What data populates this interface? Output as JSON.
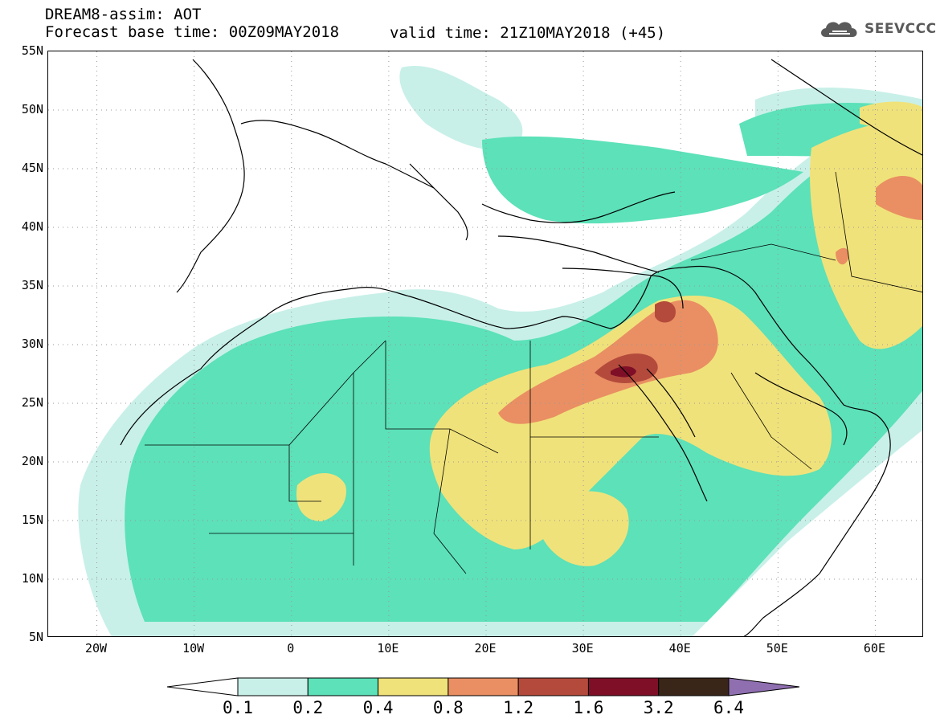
{
  "header": {
    "title_line1": "DREAM8-assim: AOT",
    "title_line2": "Forecast base time: 00Z09MAY2018",
    "valid_time": "valid time: 21Z10MAY2018 (+45)"
  },
  "logo": {
    "text": "SEEVCCC",
    "icon": "cloud-icon"
  },
  "map": {
    "projection": "lat-lon",
    "lon_range": [
      -25,
      65
    ],
    "lat_range": [
      5,
      55
    ],
    "lat_ticks": [
      "55N",
      "50N",
      "45N",
      "40N",
      "35N",
      "30N",
      "25N",
      "20N",
      "15N",
      "10N",
      "5N"
    ],
    "lon_ticks": [
      "20W",
      "10W",
      "0",
      "10E",
      "20E",
      "30E",
      "40E",
      "50E",
      "60E"
    ],
    "grid": "dotted"
  },
  "colorbar": {
    "levels": [
      "0.1",
      "0.2",
      "0.4",
      "0.8",
      "1.2",
      "1.6",
      "3.2",
      "6.4"
    ],
    "colors": [
      "#c8f0e8",
      "#5ce1b8",
      "#f0e27a",
      "#e98f63",
      "#b44a3c",
      "#7e0f27",
      "#3a2618",
      "#8f6fb0"
    ]
  }
}
